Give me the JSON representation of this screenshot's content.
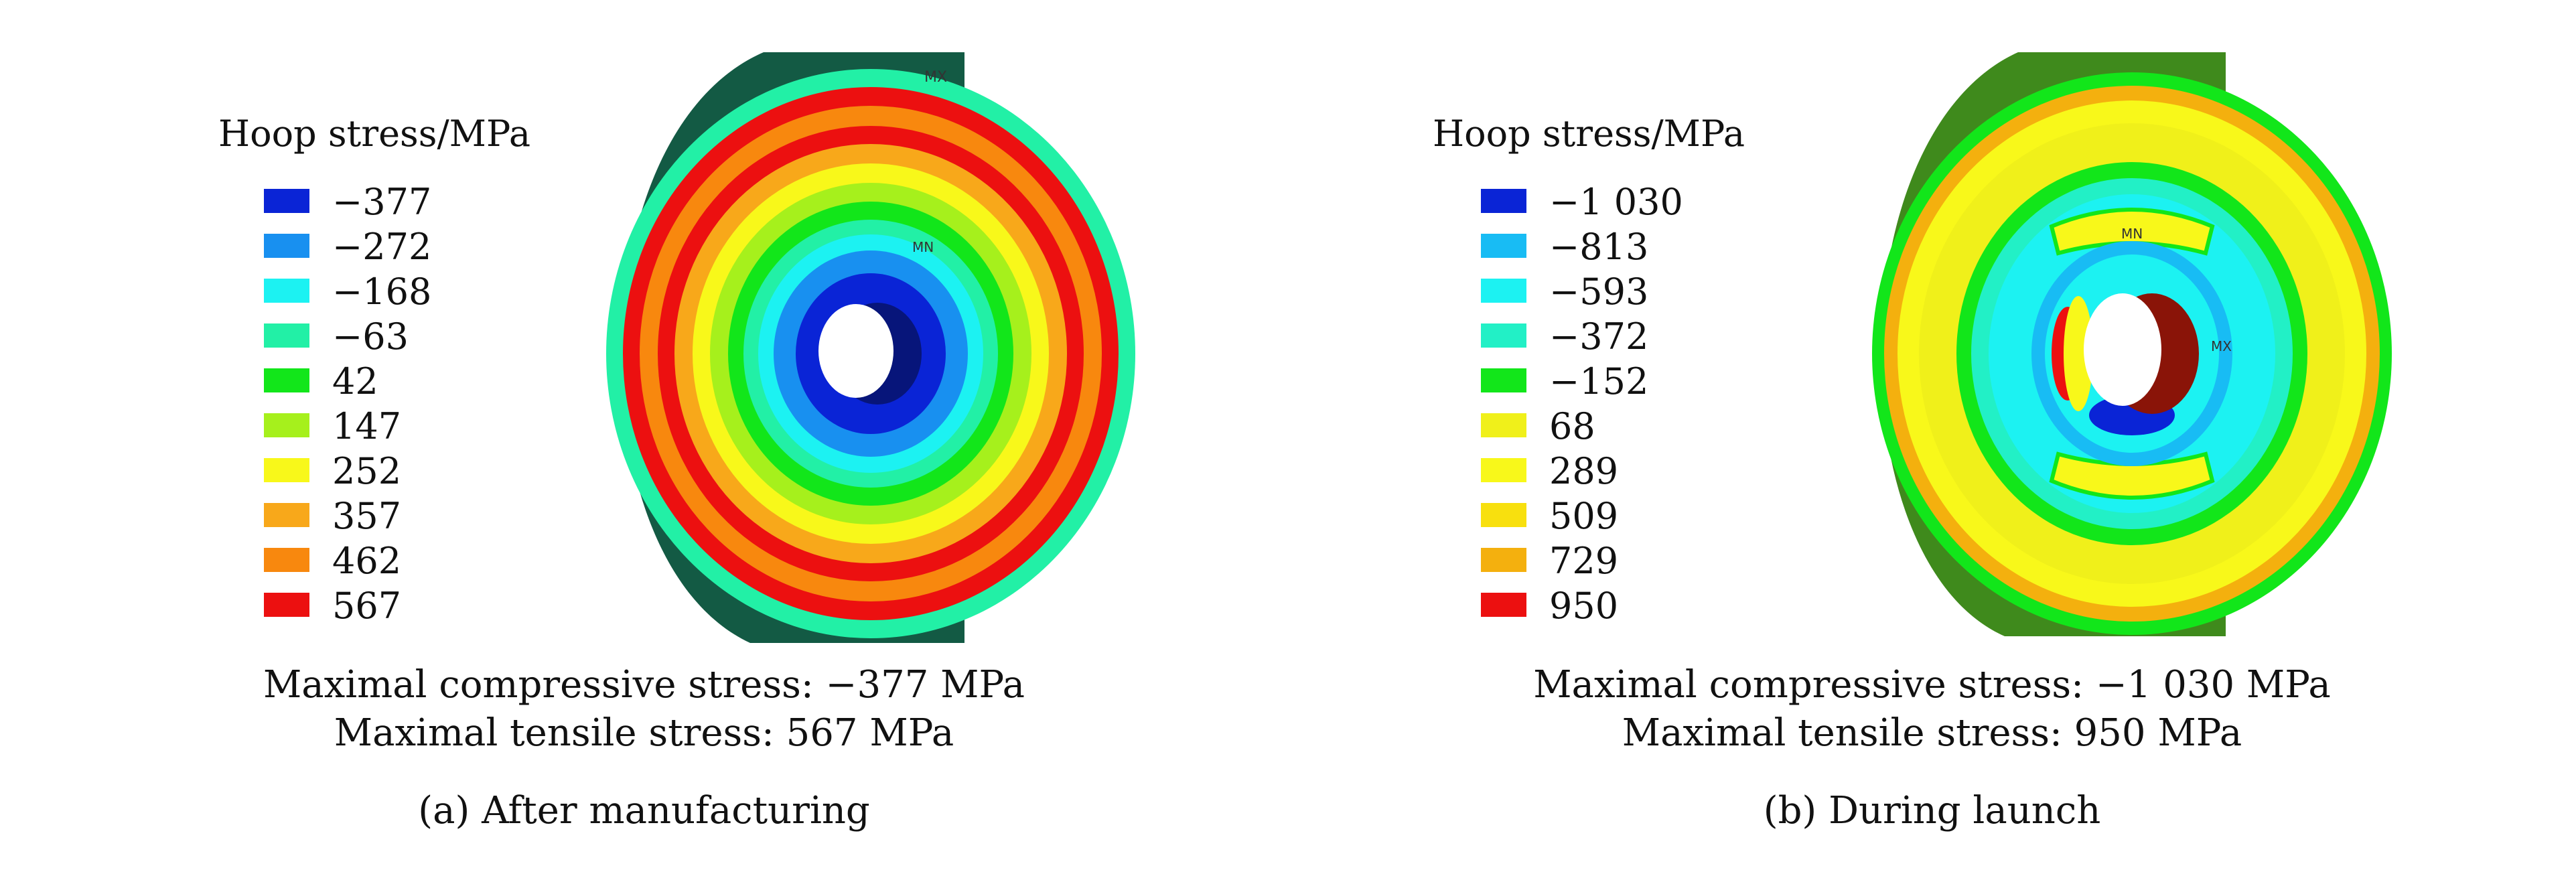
{
  "panels": {
    "a": {
      "legend_title": "Hoop stress/MPa",
      "legend": [
        {
          "label": "−377",
          "color": "#0a24d6"
        },
        {
          "label": "−272",
          "color": "#1890f0"
        },
        {
          "label": "−168",
          "color": "#1cf2f2"
        },
        {
          "label": "−63",
          "color": "#22f0a6"
        },
        {
          "label": "42",
          "color": "#12e61a"
        },
        {
          "label": "147",
          "color": "#a6f01c"
        },
        {
          "label": "252",
          "color": "#f8f81a"
        },
        {
          "label": "357",
          "color": "#f8a81a"
        },
        {
          "label": "462",
          "color": "#f8880e"
        },
        {
          "label": "567",
          "color": "#ec1010"
        }
      ],
      "max_compressive": "Maximal compressive stress: −377 MPa",
      "max_tensile": "Maximal tensile stress: 567 MPa",
      "subcaption": "(a) After manufacturing",
      "marker_max": "MX",
      "marker_min": "MN"
    },
    "b": {
      "legend_title": "Hoop stress/MPa",
      "legend": [
        {
          "label": "−1 030",
          "color": "#0a24d6"
        },
        {
          "label": "−813",
          "color": "#18bcf4"
        },
        {
          "label": "−593",
          "color": "#1cf2f2"
        },
        {
          "label": "−372",
          "color": "#22f0c6"
        },
        {
          "label": "−152",
          "color": "#12e61a"
        },
        {
          "label": "68",
          "color": "#f0f01a"
        },
        {
          "label": "289",
          "color": "#f8f81a"
        },
        {
          "label": "509",
          "color": "#f8e00e"
        },
        {
          "label": "729",
          "color": "#f4b00e"
        },
        {
          "label": "950",
          "color": "#ec1010"
        }
      ],
      "max_compressive": "Maximal compressive stress: −1 030 MPa",
      "max_tensile": "Maximal tensile stress: 950 MPa",
      "subcaption": "(b) During launch",
      "marker_max": "MX",
      "marker_min": "MN"
    }
  }
}
